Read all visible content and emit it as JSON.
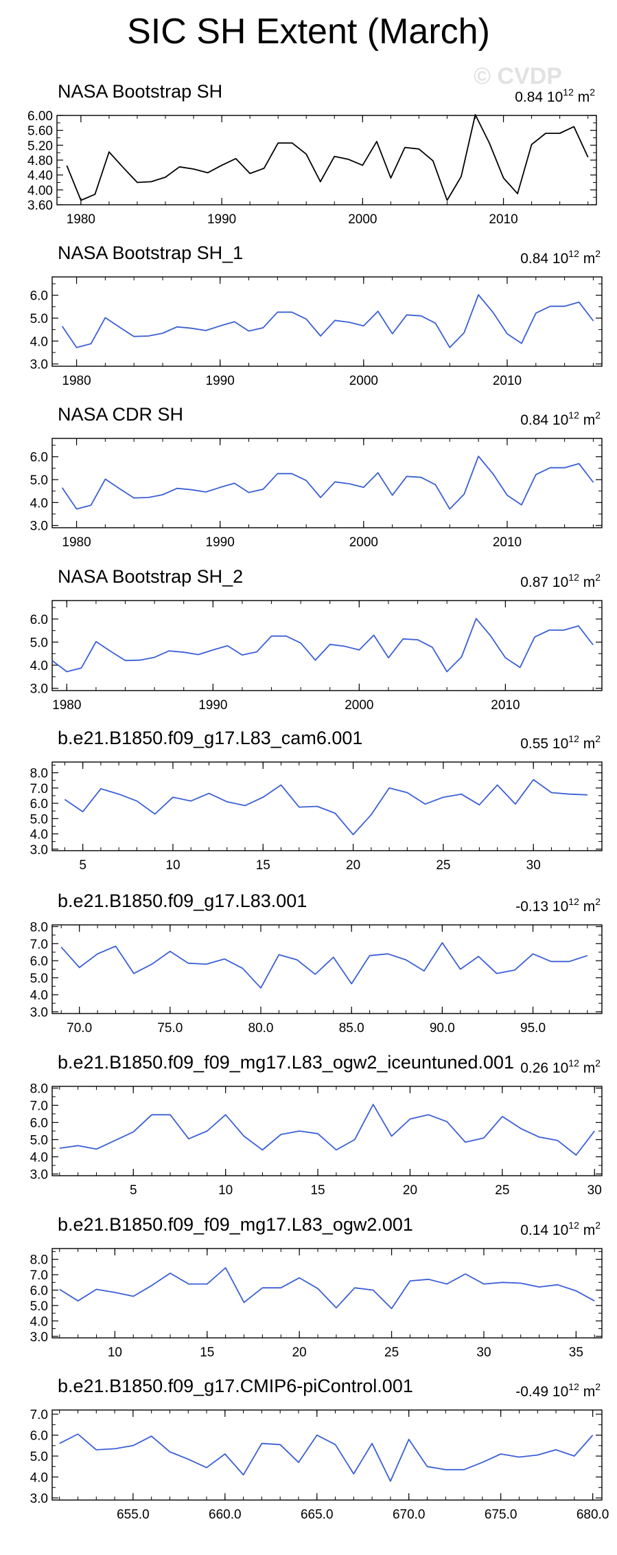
{
  "page_title": "SIC SH Extent (March)",
  "watermark": "© CVDP",
  "colors": {
    "primary": "#000000",
    "model": "#3a5fd6",
    "frame": "#000000"
  },
  "chart_data": [
    {
      "type": "line",
      "title": "NASA Bootstrap SH",
      "trend_value": "0.84",
      "trend_units": "10",
      "trend_exp": "12",
      "trend_suffix": "m",
      "trend_sq": "2",
      "color": "#000000",
      "xlim": [
        1978.3,
        2016.6
      ],
      "ylim": [
        3.6,
        6.0
      ],
      "yticks": [
        3.6,
        4.0,
        4.4,
        4.8,
        5.2,
        5.6,
        6.0
      ],
      "ytick_labels": [
        "3.60",
        "4.00",
        "4.40",
        "4.80",
        "5.20",
        "5.60",
        "6.00"
      ],
      "yminor": [
        3.8,
        4.2,
        4.6,
        5.0,
        5.4,
        5.8
      ],
      "xticks": [
        1980,
        1990,
        2000,
        2010
      ],
      "xtick_labels": [
        "1980",
        "1990",
        "2000",
        "2010"
      ],
      "xminor_step": 2,
      "x": [
        1979,
        1980,
        1981,
        1982,
        1983,
        1984,
        1985,
        1986,
        1987,
        1988,
        1989,
        1990,
        1991,
        1992,
        1993,
        1994,
        1995,
        1996,
        1997,
        1998,
        1999,
        2000,
        2001,
        2002,
        2003,
        2004,
        2005,
        2006,
        2007,
        2008,
        2009,
        2010,
        2011,
        2012,
        2013,
        2014,
        2015,
        2016
      ],
      "y": [
        4.65,
        3.72,
        3.88,
        5.02,
        4.6,
        4.2,
        4.22,
        4.34,
        4.62,
        4.56,
        4.46,
        4.66,
        4.84,
        4.44,
        4.58,
        5.26,
        5.26,
        4.96,
        4.22,
        4.9,
        4.82,
        4.66,
        5.3,
        4.32,
        5.14,
        5.1,
        4.78,
        3.72,
        4.36,
        6.02,
        5.26,
        4.32,
        3.9,
        5.22,
        5.52,
        5.52,
        5.7,
        4.88
      ]
    },
    {
      "type": "line",
      "title": "NASA Bootstrap SH_1",
      "trend_value": "0.84",
      "trend_units": "10",
      "trend_exp": "12",
      "trend_suffix": "m",
      "trend_sq": "2",
      "color": "#3a5fd6",
      "xlim": [
        1978.3,
        2016.6
      ],
      "ylim": [
        2.9,
        6.8
      ],
      "yticks": [
        3.0,
        4.0,
        5.0,
        6.0
      ],
      "ytick_labels": [
        "3.0",
        "4.0",
        "5.0",
        "6.0"
      ],
      "yminor": [
        3.5,
        4.5,
        5.5,
        6.5
      ],
      "xticks": [
        1980,
        1990,
        2000,
        2010
      ],
      "xtick_labels": [
        "1980",
        "1990",
        "2000",
        "2010"
      ],
      "xminor_step": 2,
      "x": [
        1979,
        1980,
        1981,
        1982,
        1983,
        1984,
        1985,
        1986,
        1987,
        1988,
        1989,
        1990,
        1991,
        1992,
        1993,
        1994,
        1995,
        1996,
        1997,
        1998,
        1999,
        2000,
        2001,
        2002,
        2003,
        2004,
        2005,
        2006,
        2007,
        2008,
        2009,
        2010,
        2011,
        2012,
        2013,
        2014,
        2015,
        2016
      ],
      "y": [
        4.65,
        3.72,
        3.88,
        5.02,
        4.6,
        4.2,
        4.22,
        4.34,
        4.62,
        4.56,
        4.46,
        4.66,
        4.84,
        4.44,
        4.58,
        5.26,
        5.26,
        4.96,
        4.22,
        4.9,
        4.82,
        4.66,
        5.3,
        4.32,
        5.14,
        5.1,
        4.78,
        3.72,
        4.36,
        6.02,
        5.26,
        4.32,
        3.9,
        5.22,
        5.52,
        5.52,
        5.7,
        4.88
      ]
    },
    {
      "type": "line",
      "title": "NASA CDR SH",
      "trend_value": "0.84",
      "trend_units": "10",
      "trend_exp": "12",
      "trend_suffix": "m",
      "trend_sq": "2",
      "color": "#3a5fd6",
      "xlim": [
        1978.3,
        2016.6
      ],
      "ylim": [
        2.9,
        6.8
      ],
      "yticks": [
        3.0,
        4.0,
        5.0,
        6.0
      ],
      "ytick_labels": [
        "3.0",
        "4.0",
        "5.0",
        "6.0"
      ],
      "yminor": [
        3.5,
        4.5,
        5.5,
        6.5
      ],
      "xticks": [
        1980,
        1990,
        2000,
        2010
      ],
      "xtick_labels": [
        "1980",
        "1990",
        "2000",
        "2010"
      ],
      "xminor_step": 2,
      "x": [
        1979,
        1980,
        1981,
        1982,
        1983,
        1984,
        1985,
        1986,
        1987,
        1988,
        1989,
        1990,
        1991,
        1992,
        1993,
        1994,
        1995,
        1996,
        1997,
        1998,
        1999,
        2000,
        2001,
        2002,
        2003,
        2004,
        2005,
        2006,
        2007,
        2008,
        2009,
        2010,
        2011,
        2012,
        2013,
        2014,
        2015,
        2016
      ],
      "y": [
        4.65,
        3.72,
        3.88,
        5.02,
        4.6,
        4.2,
        4.22,
        4.34,
        4.62,
        4.56,
        4.46,
        4.66,
        4.84,
        4.44,
        4.58,
        5.26,
        5.26,
        4.96,
        4.22,
        4.9,
        4.82,
        4.66,
        5.3,
        4.32,
        5.14,
        5.1,
        4.78,
        3.72,
        4.36,
        6.02,
        5.26,
        4.32,
        3.9,
        5.22,
        5.52,
        5.52,
        5.7,
        4.88
      ]
    },
    {
      "type": "line",
      "title": "NASA Bootstrap SH_2",
      "trend_value": "0.87",
      "trend_units": "10",
      "trend_exp": "12",
      "trend_suffix": "m",
      "trend_sq": "2",
      "color": "#3a5fd6",
      "xlim": [
        1979.0,
        2016.6
      ],
      "ylim": [
        2.9,
        6.8
      ],
      "yticks": [
        3.0,
        4.0,
        5.0,
        6.0
      ],
      "ytick_labels": [
        "3.0",
        "4.0",
        "5.0",
        "6.0"
      ],
      "yminor": [
        3.5,
        4.5,
        5.5,
        6.5
      ],
      "xticks": [
        1980,
        1990,
        2000,
        2010
      ],
      "xtick_labels": [
        "1980",
        "1990",
        "2000",
        "2010"
      ],
      "xminor_step": 2,
      "x": [
        1979,
        1980,
        1981,
        1982,
        1983,
        1984,
        1985,
        1986,
        1987,
        1988,
        1989,
        1990,
        1991,
        1992,
        1993,
        1994,
        1995,
        1996,
        1997,
        1998,
        1999,
        2000,
        2001,
        2002,
        2003,
        2004,
        2005,
        2006,
        2007,
        2008,
        2009,
        2010,
        2011,
        2012,
        2013,
        2014,
        2015,
        2016
      ],
      "y": [
        4.2,
        3.72,
        3.88,
        5.02,
        4.6,
        4.2,
        4.22,
        4.34,
        4.62,
        4.56,
        4.46,
        4.66,
        4.84,
        4.44,
        4.58,
        5.26,
        5.26,
        4.96,
        4.22,
        4.9,
        4.82,
        4.66,
        5.3,
        4.32,
        5.14,
        5.1,
        4.78,
        3.72,
        4.36,
        6.02,
        5.26,
        4.32,
        3.9,
        5.22,
        5.52,
        5.52,
        5.7,
        4.88
      ]
    },
    {
      "type": "line",
      "title": "b.e21.B1850.f09_g17.L83_cam6.001",
      "trend_value": "0.55",
      "trend_units": "10",
      "trend_exp": "12",
      "trend_suffix": "m",
      "trend_sq": "2",
      "color": "#3a5fd6",
      "xlim": [
        3.3,
        33.8
      ],
      "ylim": [
        2.9,
        8.7
      ],
      "yticks": [
        3.0,
        4.0,
        5.0,
        6.0,
        7.0,
        8.0
      ],
      "ytick_labels": [
        "3.0",
        "4.0",
        "5.0",
        "6.0",
        "7.0",
        "8.0"
      ],
      "yminor": [
        3.5,
        4.5,
        5.5,
        6.5,
        7.5,
        8.5
      ],
      "xticks": [
        5,
        10,
        15,
        20,
        25,
        30
      ],
      "xtick_labels": [
        "5",
        "10",
        "15",
        "20",
        "25",
        "30"
      ],
      "xminor_step": 1,
      "x": [
        4,
        5,
        6,
        7,
        8,
        9,
        10,
        11,
        12,
        13,
        14,
        15,
        16,
        17,
        18,
        19,
        20,
        21,
        22,
        23,
        24,
        25,
        26,
        27,
        28,
        29,
        30,
        31,
        32,
        33
      ],
      "y": [
        6.25,
        5.45,
        6.95,
        6.6,
        6.15,
        5.3,
        6.4,
        6.15,
        6.65,
        6.1,
        5.85,
        6.4,
        7.2,
        5.75,
        5.8,
        5.35,
        3.95,
        5.25,
        7.0,
        6.7,
        5.95,
        6.4,
        6.6,
        5.9,
        7.2,
        5.95,
        7.55,
        6.7,
        6.6,
        6.55
      ]
    },
    {
      "type": "line",
      "title": "b.e21.B1850.f09_g17.L83.001",
      "trend_value": "-0.13",
      "trend_units": "10",
      "trend_exp": "12",
      "trend_suffix": "m",
      "trend_sq": "2",
      "color": "#3a5fd6",
      "xlim": [
        68.5,
        98.8
      ],
      "ylim": [
        2.9,
        8.1
      ],
      "yticks": [
        3.0,
        4.0,
        5.0,
        6.0,
        7.0,
        8.0
      ],
      "ytick_labels": [
        "3.0",
        "4.0",
        "5.0",
        "6.0",
        "7.0",
        "8.0"
      ],
      "yminor": [
        3.5,
        4.5,
        5.5,
        6.5,
        7.5
      ],
      "xticks": [
        70,
        75,
        80,
        85,
        90,
        95
      ],
      "xtick_labels": [
        "70.0",
        "75.0",
        "80.0",
        "85.0",
        "90.0",
        "95.0"
      ],
      "xminor_step": 1,
      "x": [
        69,
        70,
        71,
        72,
        73,
        74,
        75,
        76,
        77,
        78,
        79,
        80,
        81,
        82,
        83,
        84,
        85,
        86,
        87,
        88,
        89,
        90,
        91,
        92,
        93,
        94,
        95,
        96,
        97,
        98
      ],
      "y": [
        6.8,
        5.6,
        6.4,
        6.85,
        5.25,
        5.8,
        6.55,
        5.85,
        5.8,
        6.1,
        5.55,
        4.4,
        6.35,
        6.05,
        5.2,
        6.2,
        4.65,
        6.3,
        6.4,
        6.05,
        5.4,
        7.05,
        5.5,
        6.25,
        5.25,
        5.45,
        6.4,
        5.95,
        5.95,
        6.3
      ]
    },
    {
      "type": "line",
      "title": "b.e21.B1850.f09_f09_mg17.L83_ogw2_iceuntuned.001",
      "trend_value": "0.26",
      "trend_units": "10",
      "trend_exp": "12",
      "trend_suffix": "m",
      "trend_sq": "2",
      "color": "#3a5fd6",
      "xlim": [
        0.6,
        30.4
      ],
      "ylim": [
        2.9,
        8.1
      ],
      "yticks": [
        3.0,
        4.0,
        5.0,
        6.0,
        7.0,
        8.0
      ],
      "ytick_labels": [
        "3.0",
        "4.0",
        "5.0",
        "6.0",
        "7.0",
        "8.0"
      ],
      "yminor": [
        3.5,
        4.5,
        5.5,
        6.5,
        7.5
      ],
      "xticks": [
        5,
        10,
        15,
        20,
        25,
        30
      ],
      "xtick_labels": [
        "5",
        "10",
        "15",
        "20",
        "25",
        "30"
      ],
      "xminor_step": 1,
      "x": [
        1,
        2,
        3,
        4,
        5,
        6,
        7,
        8,
        9,
        10,
        11,
        12,
        13,
        14,
        15,
        16,
        17,
        18,
        19,
        20,
        21,
        22,
        23,
        24,
        25,
        26,
        27,
        28,
        29,
        30
      ],
      "y": [
        4.5,
        4.65,
        4.45,
        4.95,
        5.45,
        6.45,
        6.45,
        5.05,
        5.5,
        6.45,
        5.2,
        4.4,
        5.3,
        5.5,
        5.35,
        4.4,
        5.0,
        7.05,
        5.2,
        6.2,
        6.45,
        6.05,
        4.85,
        5.1,
        6.35,
        5.65,
        5.15,
        4.95,
        4.1,
        5.5
      ]
    },
    {
      "type": "line",
      "title": "b.e21.B1850.f09_f09_mg17.L83_ogw2.001",
      "trend_value": "0.14",
      "trend_units": "10",
      "trend_exp": "12",
      "trend_suffix": "m",
      "trend_sq": "2",
      "color": "#3a5fd6",
      "xlim": [
        6.6,
        36.4
      ],
      "ylim": [
        2.9,
        8.7
      ],
      "yticks": [
        3.0,
        4.0,
        5.0,
        6.0,
        7.0,
        8.0
      ],
      "ytick_labels": [
        "3.0",
        "4.0",
        "5.0",
        "6.0",
        "7.0",
        "8.0"
      ],
      "yminor": [
        3.5,
        4.5,
        5.5,
        6.5,
        7.5,
        8.5
      ],
      "xticks": [
        10,
        15,
        20,
        25,
        30,
        35
      ],
      "xtick_labels": [
        "10",
        "15",
        "20",
        "25",
        "30",
        "35"
      ],
      "xminor_step": 1,
      "x": [
        7,
        8,
        9,
        10,
        11,
        12,
        13,
        14,
        15,
        16,
        17,
        18,
        19,
        20,
        21,
        22,
        23,
        24,
        25,
        26,
        27,
        28,
        29,
        30,
        31,
        32,
        33,
        34,
        35,
        36
      ],
      "y": [
        6.05,
        5.3,
        6.05,
        5.85,
        5.6,
        6.3,
        7.1,
        6.4,
        6.4,
        7.45,
        5.2,
        6.15,
        6.15,
        6.8,
        6.1,
        4.85,
        6.15,
        6.0,
        4.8,
        6.6,
        6.7,
        6.4,
        7.05,
        6.4,
        6.5,
        6.45,
        6.2,
        6.35,
        5.95,
        5.3
      ]
    },
    {
      "type": "line",
      "title": "b.e21.B1850.f09_g17.CMIP6-piControl.001",
      "trend_value": "-0.49",
      "trend_units": "10",
      "trend_exp": "12",
      "trend_suffix": "m",
      "trend_sq": "2",
      "color": "#3a5fd6",
      "xlim": [
        650.6,
        680.5
      ],
      "ylim": [
        2.9,
        7.2
      ],
      "yticks": [
        3.0,
        4.0,
        5.0,
        6.0,
        7.0
      ],
      "ytick_labels": [
        "3.0",
        "4.0",
        "5.0",
        "6.0",
        "7.0"
      ],
      "yminor": [
        3.5,
        4.5,
        5.5,
        6.5
      ],
      "xticks": [
        655,
        660,
        665,
        670,
        675,
        680
      ],
      "xtick_labels": [
        "655.0",
        "660.0",
        "665.0",
        "670.0",
        "675.0",
        "680.0"
      ],
      "xminor_step": 1,
      "x": [
        651,
        652,
        653,
        654,
        655,
        656,
        657,
        658,
        659,
        660,
        661,
        662,
        663,
        664,
        665,
        666,
        667,
        668,
        669,
        670,
        671,
        672,
        673,
        674,
        675,
        676,
        677,
        678,
        679,
        680
      ],
      "y": [
        5.6,
        6.05,
        5.3,
        5.35,
        5.5,
        5.95,
        5.2,
        4.85,
        4.45,
        5.1,
        4.1,
        5.6,
        5.55,
        4.7,
        6.0,
        5.55,
        4.15,
        5.6,
        3.8,
        5.8,
        4.5,
        4.35,
        4.35,
        4.7,
        5.1,
        4.95,
        5.05,
        5.3,
        5.0,
        6.0
      ]
    }
  ]
}
